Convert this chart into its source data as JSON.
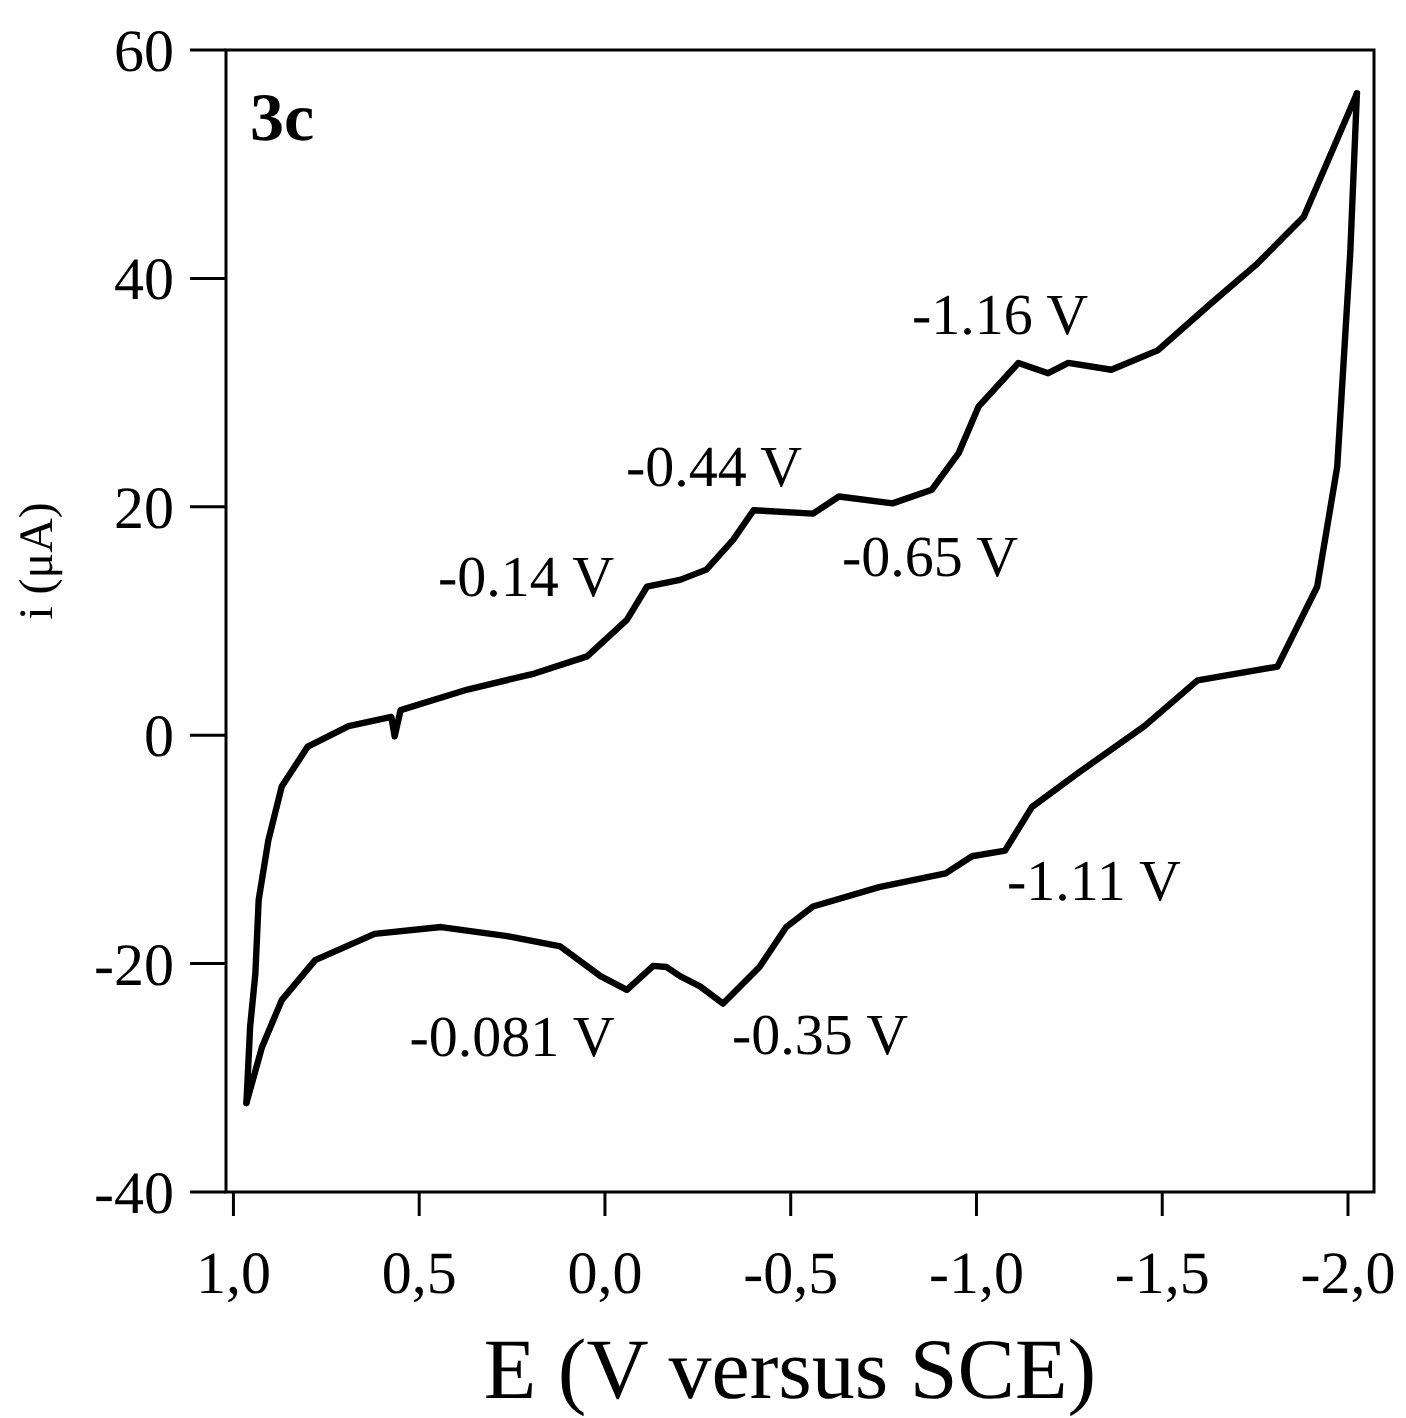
{
  "chart_data": {
    "type": "line",
    "xlabel": "E (V versus SCE)",
    "ylabel": "i (μA)",
    "xlim": [
      1.02,
      -2.07
    ],
    "ylim": [
      -40,
      60
    ],
    "xticks": [
      {
        "value": 1,
        "label": "1,0"
      },
      {
        "value": 0.5,
        "label": "0,5"
      },
      {
        "value": 0,
        "label": "0,0"
      },
      {
        "value": -0.5,
        "label": "-0,5"
      },
      {
        "value": -1,
        "label": "-1,0"
      },
      {
        "value": -1.5,
        "label": "-1,5"
      },
      {
        "value": -2,
        "label": "-2,0"
      }
    ],
    "yticks": [
      -40,
      -20,
      0,
      20,
      40,
      60
    ],
    "grid": false,
    "marker": "none",
    "line_style": "solid",
    "series": [
      {
        "color": "#000000",
        "x": [
          0.965,
          0.955,
          0.941,
          0.932,
          0.906,
          0.87,
          0.8,
          0.69,
          0.575,
          0.566,
          0.55,
          0.37,
          0.19,
          0.048,
          -0.059,
          -0.113,
          -0.202,
          -0.273,
          -0.345,
          -0.4,
          -0.56,
          -0.63,
          -0.774,
          -0.88,
          -0.952,
          -1.006,
          -1.113,
          -1.193,
          -1.247,
          -1.363,
          -1.488,
          -1.631,
          -1.756,
          -1.881,
          -2.024
        ],
        "values": [
          -32.2,
          -25.5,
          -20.9,
          -14.4,
          -9.2,
          -4.5,
          -1.0,
          0.8,
          1.6,
          -0.1,
          2.2,
          4.0,
          5.4,
          6.9,
          10.1,
          13.0,
          13.6,
          14.5,
          17.1,
          19.7,
          19.4,
          20.9,
          20.3,
          21.5,
          24.7,
          28.8,
          32.6,
          31.7,
          32.6,
          32.0,
          33.7,
          37.8,
          41.3,
          45.4,
          56.2
        ]
      },
      {
        "color": "#000000",
        "x": [
          -2.024,
          -2.006,
          -1.971,
          -1.917,
          -1.81,
          -1.595,
          -1.452,
          -1.274,
          -1.149,
          -1.077,
          -0.988,
          -0.917,
          -0.738,
          -0.56,
          -0.488,
          -0.416,
          -0.318,
          -0.256,
          -0.202,
          -0.166,
          -0.13,
          -0.059,
          0.012,
          0.12,
          0.263,
          0.441,
          0.62,
          0.78,
          0.87,
          0.923,
          0.965
        ],
        "values": [
          56.2,
          42.2,
          23.5,
          13.0,
          6.0,
          4.8,
          0.8,
          -3.3,
          -6.3,
          -10.1,
          -10.6,
          -12.1,
          -13.3,
          -15.0,
          -16.8,
          -20.3,
          -23.5,
          -22.0,
          -21.1,
          -20.3,
          -20.2,
          -22.3,
          -21.1,
          -18.5,
          -17.6,
          -16.8,
          -17.4,
          -19.7,
          -23.2,
          -27.3,
          -32.2
        ]
      }
    ],
    "annotations": [
      "3c",
      "-0.14 V",
      "-0.44 V",
      "-0.65 V",
      "-1.16 V",
      "-1.11 V",
      "-0.081 V",
      "-0.35 V"
    ]
  }
}
